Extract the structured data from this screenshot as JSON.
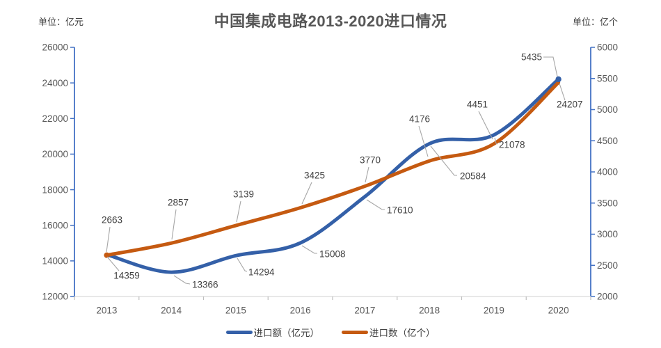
{
  "title": "中国集成电路2013-2020进口情况",
  "legend": {
    "items": [
      {
        "label": "进口额（亿元）",
        "color": "#3460A8"
      },
      {
        "label": "进口数（亿个）",
        "color": "#C55A11"
      }
    ]
  },
  "chart_data": {
    "type": "line",
    "title": "中国集成电路2013-2020进口情况",
    "categories": [
      "2013",
      "2014",
      "2015",
      "2016",
      "2017",
      "2018",
      "2019",
      "2020"
    ],
    "series": [
      {
        "name": "进口额（亿元）",
        "axis": "left",
        "color": "#3460A8",
        "values": [
          14359,
          13366,
          14294,
          15008,
          17610,
          20584,
          21078,
          24207
        ]
      },
      {
        "name": "进口数（亿个）",
        "axis": "right",
        "color": "#C55A11",
        "values": [
          2663,
          2857,
          3139,
          3425,
          3770,
          4176,
          4451,
          5435
        ]
      }
    ],
    "left_axis": {
      "unit": "单位：亿元",
      "min": 12000,
      "max": 26000,
      "step": 2000
    },
    "right_axis": {
      "unit": "单位：亿个",
      "min": 2000,
      "max": 6000,
      "step": 500
    },
    "smooth": true,
    "grid": false,
    "data_labels": true,
    "legend_position": "bottom",
    "colors": {
      "axis_line": "#4472C4",
      "x_axis_line": "#D9D9D9",
      "x_tick": "#BFBFBF",
      "leader_line": "#A6A6A6",
      "tick_text": "#595959",
      "label_text": "#404040"
    }
  }
}
